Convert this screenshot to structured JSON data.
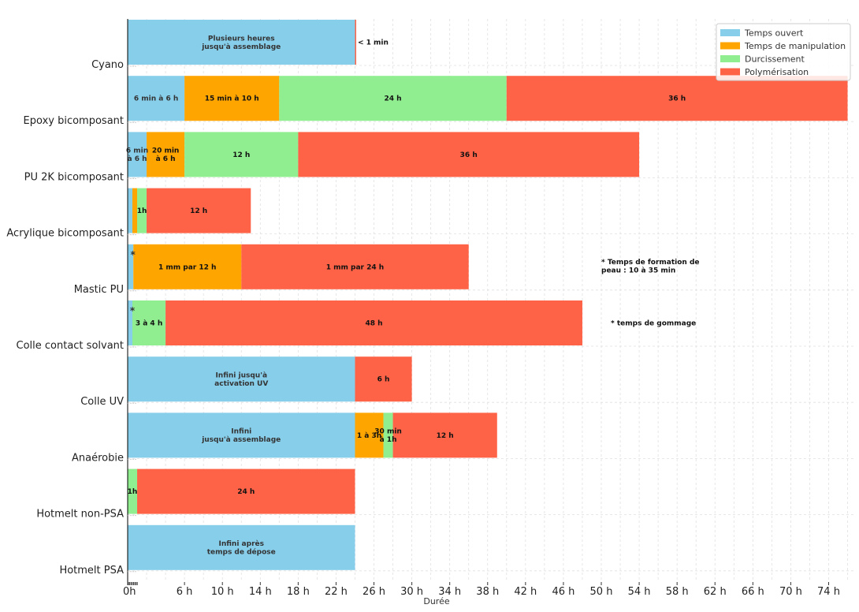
{
  "chart_data": {
    "type": "bar",
    "orientation": "horizontal",
    "stacked": true,
    "xlabel": "Durée",
    "xlim": [
      0,
      76
    ],
    "x_ticks": [
      {
        "value": 0,
        "label": "0h"
      },
      {
        "value": 6,
        "label": "6 h"
      },
      {
        "value": 10,
        "label": "10 h"
      },
      {
        "value": 14,
        "label": "14 h"
      },
      {
        "value": 18,
        "label": "18 h"
      },
      {
        "value": 22,
        "label": "22 h"
      },
      {
        "value": 26,
        "label": "26 h"
      },
      {
        "value": 30,
        "label": "30 h"
      },
      {
        "value": 34,
        "label": "34 h"
      },
      {
        "value": 38,
        "label": "38 h"
      },
      {
        "value": 42,
        "label": "42 h"
      },
      {
        "value": 46,
        "label": "46 h"
      },
      {
        "value": 50,
        "label": "50 h"
      },
      {
        "value": 54,
        "label": "54 h"
      },
      {
        "value": 58,
        "label": "58 h"
      },
      {
        "value": 62,
        "label": "62 h"
      },
      {
        "value": 66,
        "label": "66 h"
      },
      {
        "value": 70,
        "label": "70 h"
      },
      {
        "value": 74,
        "label": "74 h"
      }
    ],
    "grid": true,
    "legend_position": "top-right",
    "legend": [
      {
        "key": "open",
        "name": "Temps ouvert",
        "color": "#87CEEB"
      },
      {
        "key": "handling",
        "name": "Temps de manipulation",
        "color": "#FFA500"
      },
      {
        "key": "hardening",
        "name": "Durcissement",
        "color": "#90EE90"
      },
      {
        "key": "curing",
        "name": "Polymérisation",
        "color": "#FF6347"
      }
    ],
    "categories": [
      {
        "name": "Cyano",
        "segments": [
          {
            "type": "open",
            "start": 0,
            "value": 24,
            "label": "Plusieurs heures\njusqu'à assemblage"
          },
          {
            "type": "curing",
            "start": 24,
            "value": 0.1,
            "label": "< 1 min",
            "label_outside": true
          }
        ]
      },
      {
        "name": "Epoxy bicomposant",
        "segments": [
          {
            "type": "open",
            "start": 0,
            "value": 6,
            "label": "6 min à 6 h"
          },
          {
            "type": "handling",
            "start": 6,
            "value": 10,
            "label": "15 min à 10 h"
          },
          {
            "type": "hardening",
            "start": 16,
            "value": 24,
            "label": "24 h"
          },
          {
            "type": "curing",
            "start": 40,
            "value": 36,
            "label": "36 h"
          }
        ]
      },
      {
        "name": "PU 2K bicomposant",
        "segments": [
          {
            "type": "open",
            "start": 0,
            "value": 2,
            "label": "6 min\nà 6 h"
          },
          {
            "type": "handling",
            "start": 2,
            "value": 4,
            "label": "20 min\nà 6 h"
          },
          {
            "type": "hardening",
            "start": 6,
            "value": 12,
            "label": "12 h"
          },
          {
            "type": "curing",
            "start": 18,
            "value": 36,
            "label": "36 h"
          }
        ]
      },
      {
        "name": "Acrylique bicomposant",
        "segments": [
          {
            "type": "open",
            "start": 0,
            "value": 0.5,
            "label": ""
          },
          {
            "type": "handling",
            "start": 0.5,
            "value": 0.5,
            "label": ""
          },
          {
            "type": "hardening",
            "start": 1,
            "value": 1,
            "label": "1h"
          },
          {
            "type": "curing",
            "start": 2,
            "value": 11,
            "label": "12 h"
          }
        ]
      },
      {
        "name": "Mastic PU",
        "segments": [
          {
            "type": "open",
            "start": 0,
            "value": 0.6,
            "label": "*",
            "label_top": true
          },
          {
            "type": "handling",
            "start": 0.6,
            "value": 11.4,
            "label": "1 mm par 12 h"
          },
          {
            "type": "curing",
            "start": 12,
            "value": 24,
            "label": "1 mm par 24 h"
          }
        ]
      },
      {
        "name": "Colle contact solvant",
        "segments": [
          {
            "type": "open",
            "start": 0,
            "value": 0.5,
            "label": "*",
            "label_top": true
          },
          {
            "type": "hardening",
            "start": 0.5,
            "value": 3.5,
            "label": "3 à 4 h"
          },
          {
            "type": "curing",
            "start": 4,
            "value": 44,
            "label": "48 h"
          }
        ]
      },
      {
        "name": "Colle UV",
        "segments": [
          {
            "type": "open",
            "start": 0,
            "value": 24,
            "label": "Infini jusqu'à\nactivation UV"
          },
          {
            "type": "curing",
            "start": 24,
            "value": 6,
            "label": "6 h"
          }
        ]
      },
      {
        "name": "Anaérobie",
        "segments": [
          {
            "type": "open",
            "start": 0,
            "value": 24,
            "label": "Infini\njusqu'à assemblage"
          },
          {
            "type": "handling",
            "start": 24,
            "value": 3,
            "label": "1 à 3h"
          },
          {
            "type": "hardening",
            "start": 27,
            "value": 1,
            "label": "30 min\nà 1h"
          },
          {
            "type": "curing",
            "start": 28,
            "value": 11,
            "label": "12 h"
          }
        ]
      },
      {
        "name": "Hotmelt non-PSA",
        "segments": [
          {
            "type": "hardening",
            "start": 0,
            "value": 1,
            "label": "1h"
          },
          {
            "type": "curing",
            "start": 1,
            "value": 23,
            "label": "24 h"
          }
        ]
      },
      {
        "name": "Hotmelt PSA",
        "segments": [
          {
            "type": "open",
            "start": 0,
            "value": 24,
            "label": "Infini après\ntemps de dépose"
          }
        ]
      }
    ],
    "annotations": [
      {
        "category": "Mastic PU",
        "x": 50,
        "text": "* Temps de formation de\npeau : 10 à 35 min"
      },
      {
        "category": "Colle contact solvant",
        "x": 51,
        "text": "* temps de gommage"
      }
    ]
  }
}
